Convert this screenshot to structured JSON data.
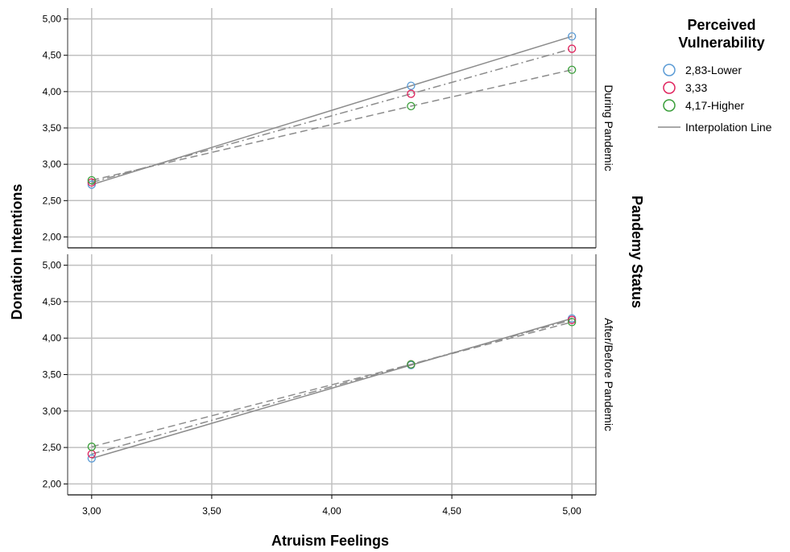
{
  "chart_data": {
    "type": "scatter",
    "xlabel": "Atruism Feelings",
    "ylabel": "Donation Intentions",
    "panel_axis_label": "Pandemy Status",
    "x_ticks": [
      "3,00",
      "3,50",
      "4,00",
      "4,50",
      "5,00"
    ],
    "y_ticks": [
      "2,00",
      "2,50",
      "3,00",
      "3,50",
      "4,00",
      "4,50",
      "5,00"
    ],
    "xlim": [
      2.9,
      5.1
    ],
    "ylim": [
      1.85,
      5.15
    ],
    "grid": true,
    "legend": {
      "title_line1": "Perceived",
      "title_line2": "Vulnerability",
      "placement": "right",
      "interpolation_label": "Interpolation Line"
    },
    "series": [
      {
        "name": "2,83-Lower",
        "color": "#5b9bd5",
        "line_dash": "solid"
      },
      {
        "name": "3,33",
        "color": "#e0245e",
        "line_dash": "dashdot"
      },
      {
        "name": "4,17-Higher",
        "color": "#3a9e3a",
        "line_dash": "dashed"
      }
    ],
    "line_color": "#8c8c8c",
    "panels": [
      {
        "label": "During Pandemic",
        "x": [
          3.0,
          4.33,
          5.0
        ],
        "series_values": [
          [
            2.72,
            4.08,
            4.76
          ],
          [
            2.75,
            3.97,
            4.59
          ],
          [
            2.78,
            3.8,
            4.3
          ]
        ]
      },
      {
        "label": "After/Before Pandemic",
        "x": [
          3.0,
          4.33,
          5.0
        ],
        "series_values": [
          [
            2.35,
            3.63,
            4.27
          ],
          [
            2.41,
            3.64,
            4.25
          ],
          [
            2.51,
            3.64,
            4.22
          ]
        ]
      }
    ]
  }
}
